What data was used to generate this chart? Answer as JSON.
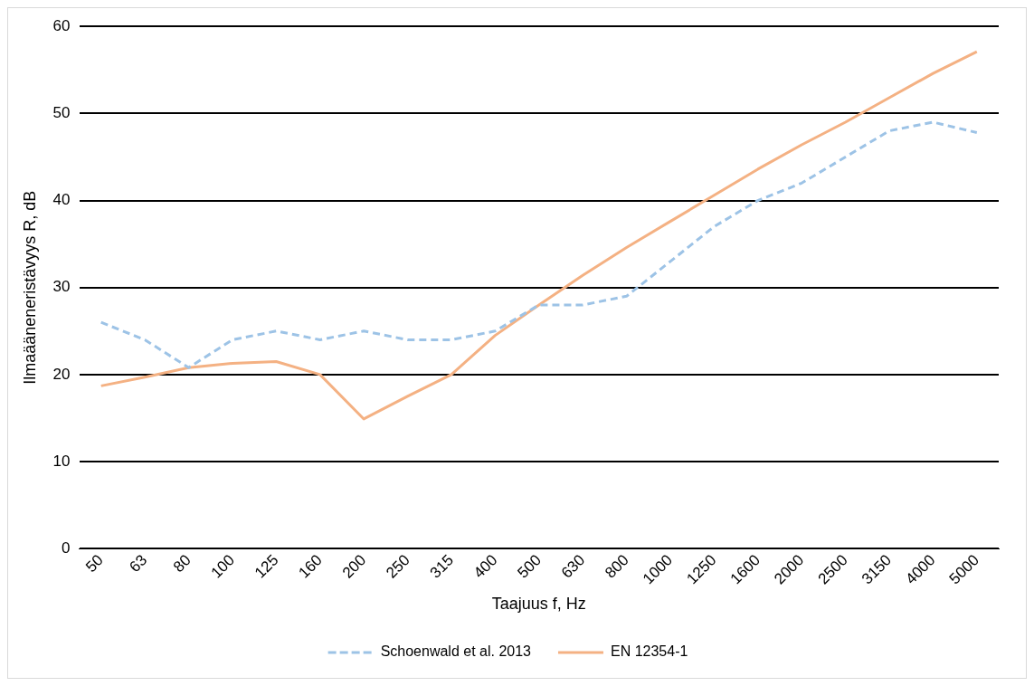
{
  "chart_data": {
    "type": "line",
    "xlabel": "Taajuus f, Hz",
    "ylabel": "Ilmaääneneristävyys R, dB",
    "categories": [
      "50",
      "63",
      "80",
      "100",
      "125",
      "160",
      "200",
      "250",
      "315",
      "400",
      "500",
      "630",
      "800",
      "1000",
      "1250",
      "1600",
      "2000",
      "2500",
      "3150",
      "4000",
      "5000"
    ],
    "series": [
      {
        "name": "Schoenwald et al. 2013",
        "color": "#9dc3e6",
        "line_style": "dashed",
        "values": [
          26,
          24,
          20.8,
          24,
          25,
          24,
          25,
          24,
          24,
          25,
          28,
          28,
          29,
          33,
          37,
          40,
          42,
          45,
          48,
          49,
          47.8
        ]
      },
      {
        "name": "EN 12354-1",
        "color": "#f4b183",
        "line_style": "solid",
        "values": [
          18.7,
          19.7,
          20.8,
          21.3,
          21.5,
          20,
          14.9,
          17.5,
          20,
          24.5,
          28,
          31.4,
          34.6,
          37.6,
          40.6,
          43.6,
          46.4,
          49,
          51.8,
          54.6,
          57.1
        ]
      }
    ],
    "ylim": [
      0,
      60
    ],
    "yticks": [
      0,
      10,
      20,
      30,
      40,
      50,
      60
    ],
    "grid": "y",
    "legend": "bottom",
    "marker": "none"
  }
}
